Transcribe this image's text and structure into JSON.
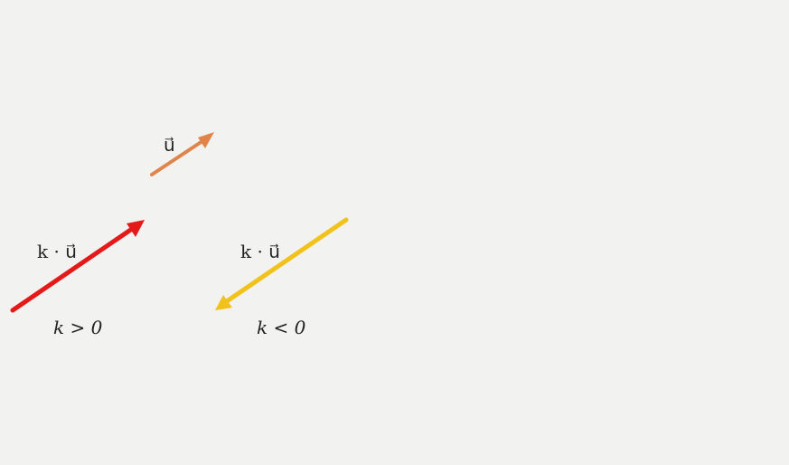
{
  "vectors": {
    "u": {
      "label": "u⃗",
      "color": "#e0844a"
    },
    "positive": {
      "label": "k · u⃗",
      "condition": "k > 0",
      "color": "#e41a1a"
    },
    "negative": {
      "label": "k · u⃗",
      "condition": "k < 0",
      "color": "#f2c21c"
    }
  }
}
